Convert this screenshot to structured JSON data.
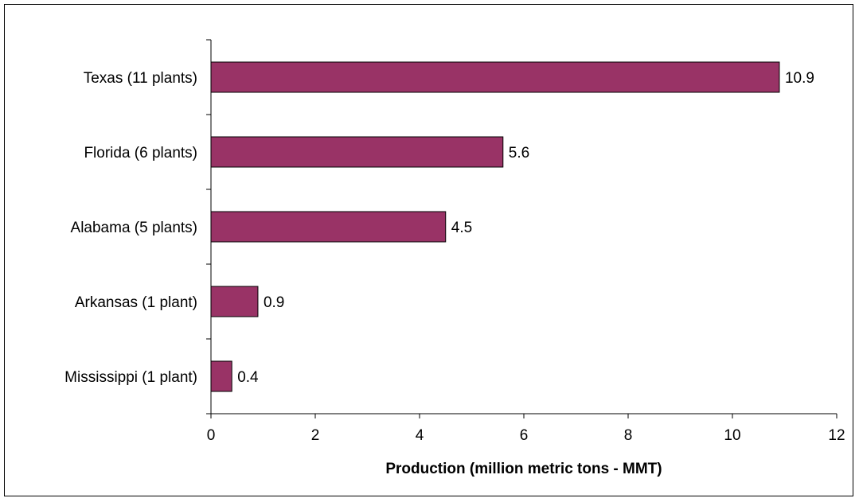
{
  "chart_data": {
    "type": "bar",
    "orientation": "horizontal",
    "categories": [
      "Texas (11 plants)",
      "Florida (6 plants)",
      "Alabama (5 plants)",
      "Arkansas (1 plant)",
      "Mississippi (1 plant)"
    ],
    "values": [
      10.9,
      5.6,
      4.5,
      0.9,
      0.4
    ],
    "data_labels": [
      "10.9",
      "5.6",
      "4.5",
      "0.9",
      "0.4"
    ],
    "xlabel": "Production (million metric tons - MMT)",
    "ylabel": "",
    "xlim": [
      0,
      12
    ],
    "x_ticks": [
      0,
      2,
      4,
      6,
      8,
      10,
      12
    ],
    "x_tick_labels": [
      "0",
      "2",
      "4",
      "6",
      "8",
      "10",
      "12"
    ],
    "bar_color": "#993366",
    "grid": false,
    "legend": "none"
  }
}
